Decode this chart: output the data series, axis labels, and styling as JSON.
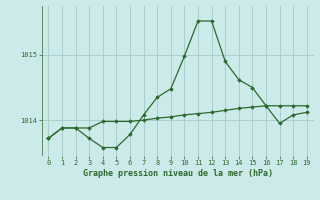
{
  "line1_x": [
    0,
    1,
    2,
    3,
    4,
    5,
    6,
    7,
    8,
    9,
    10,
    11,
    12,
    13,
    14,
    15,
    16,
    17,
    18,
    19
  ],
  "line1_y": [
    1013.72,
    1013.88,
    1013.88,
    1013.72,
    1013.58,
    1013.58,
    1013.78,
    1014.08,
    1014.35,
    1014.48,
    1014.98,
    1015.52,
    1015.52,
    1014.9,
    1014.62,
    1014.5,
    1014.22,
    1013.95,
    1014.08,
    1014.12
  ],
  "line2_x": [
    0,
    1,
    2,
    3,
    4,
    5,
    6,
    7,
    8,
    9,
    10,
    11,
    12,
    13,
    14,
    15,
    16,
    17,
    18,
    19
  ],
  "line2_y": [
    1013.72,
    1013.88,
    1013.88,
    1013.88,
    1013.98,
    1013.98,
    1013.98,
    1014.0,
    1014.03,
    1014.05,
    1014.08,
    1014.1,
    1014.12,
    1014.15,
    1014.18,
    1014.2,
    1014.22,
    1014.22,
    1014.22,
    1014.22
  ],
  "line_color": "#2d6a2d",
  "bg_color": "#cceaea",
  "grid_color": "#aacece",
  "xlabel": "Graphe pression niveau de la mer (hPa)",
  "yticks": [
    1014,
    1015
  ],
  "xticks": [
    0,
    1,
    2,
    3,
    4,
    5,
    6,
    7,
    8,
    9,
    10,
    11,
    12,
    13,
    14,
    15,
    16,
    17,
    18,
    19
  ],
  "ylim": [
    1013.45,
    1015.75
  ],
  "xlim": [
    -0.5,
    19.5
  ]
}
